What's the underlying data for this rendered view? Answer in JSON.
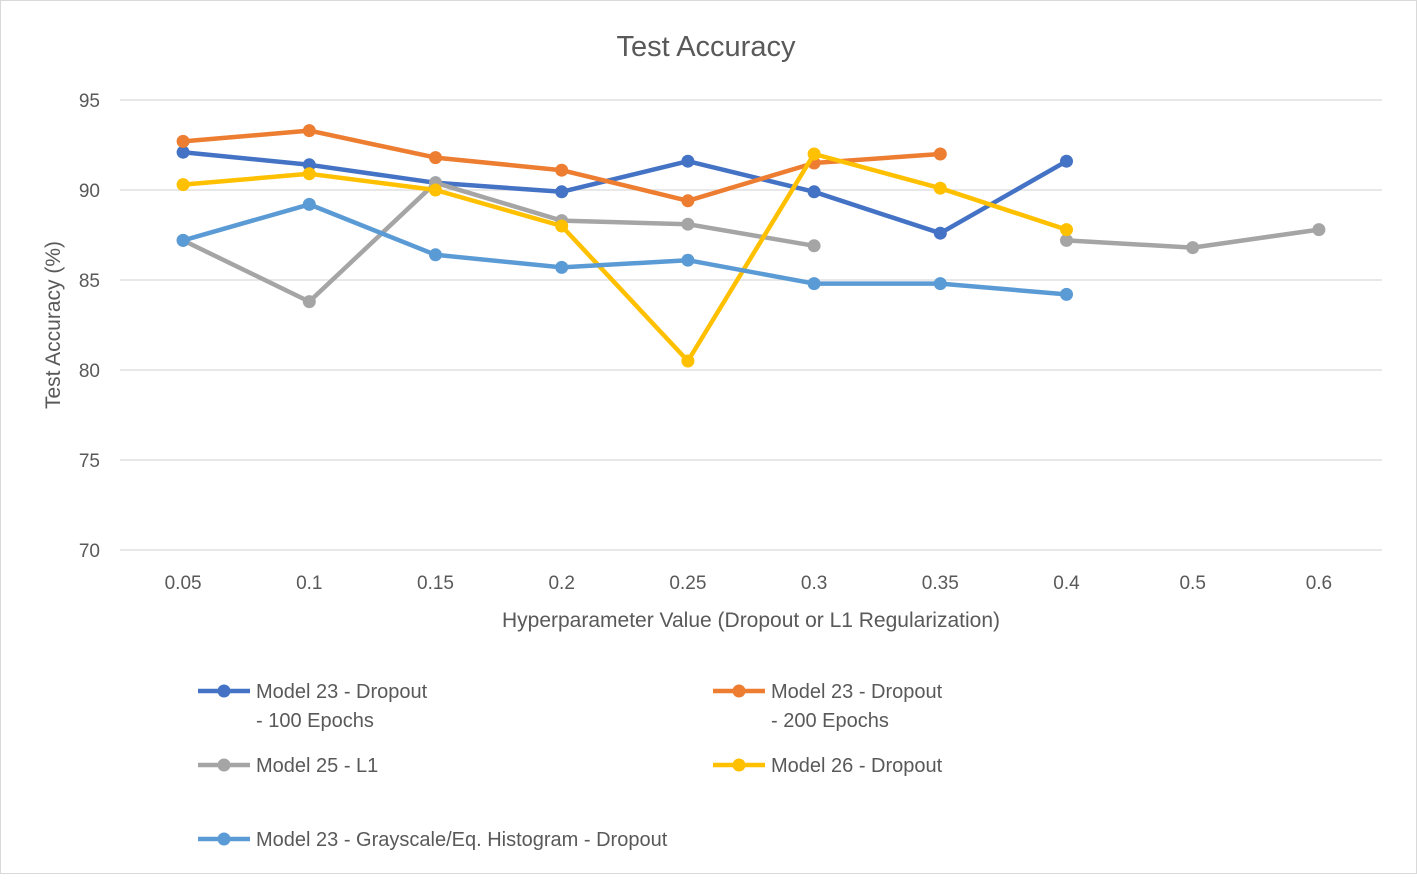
{
  "chart_data": {
    "type": "line",
    "title": "Test Accuracy",
    "xlabel": "Hyperparameter Value (Dropout or L1 Regularization)",
    "ylabel": "Test Accuracy (%)",
    "categories": [
      "0.05",
      "0.1",
      "0.15",
      "0.2",
      "0.25",
      "0.3",
      "0.35",
      "0.4",
      "0.5",
      "0.6"
    ],
    "ylim": [
      70,
      95
    ],
    "yticks": [
      70,
      75,
      80,
      85,
      90,
      95
    ],
    "grid": true,
    "legend_position": "bottom",
    "series": [
      {
        "name": "Model 23 - Dropout - 100 Epochs",
        "legend_lines": [
          "Model 23 - Dropout",
          "- 100 Epochs"
        ],
        "color": "#4472C4",
        "values": [
          92.1,
          91.4,
          90.4,
          89.9,
          91.6,
          89.9,
          87.6,
          91.6,
          null,
          null
        ]
      },
      {
        "name": "Model 23 - Dropout - 200 Epochs",
        "legend_lines": [
          "Model 23 - Dropout",
          "- 200 Epochs"
        ],
        "color": "#ED7D31",
        "values": [
          92.7,
          93.3,
          91.8,
          91.1,
          89.4,
          91.5,
          92.0,
          null,
          null,
          null
        ]
      },
      {
        "name": "Model 25 - L1",
        "legend_lines": [
          "Model 25 - L1"
        ],
        "color": "#A5A5A5",
        "values": [
          87.2,
          83.8,
          90.4,
          88.3,
          88.1,
          86.9,
          null,
          87.2,
          86.8,
          87.8
        ]
      },
      {
        "name": "Model 26 - Dropout",
        "legend_lines": [
          "Model 26 - Dropout"
        ],
        "color": "#FFC000",
        "values": [
          90.3,
          90.9,
          90.0,
          88.0,
          80.5,
          92.0,
          90.1,
          87.8,
          null,
          null
        ]
      },
      {
        "name": "Model 23 - Grayscale/Eq. Histogram - Dropout",
        "legend_lines": [
          "Model 23 - Grayscale/Eq. Histogram - Dropout"
        ],
        "color": "#5B9BD5",
        "values": [
          87.2,
          89.2,
          86.4,
          85.7,
          86.1,
          84.8,
          84.8,
          84.2,
          null,
          null
        ]
      }
    ]
  }
}
